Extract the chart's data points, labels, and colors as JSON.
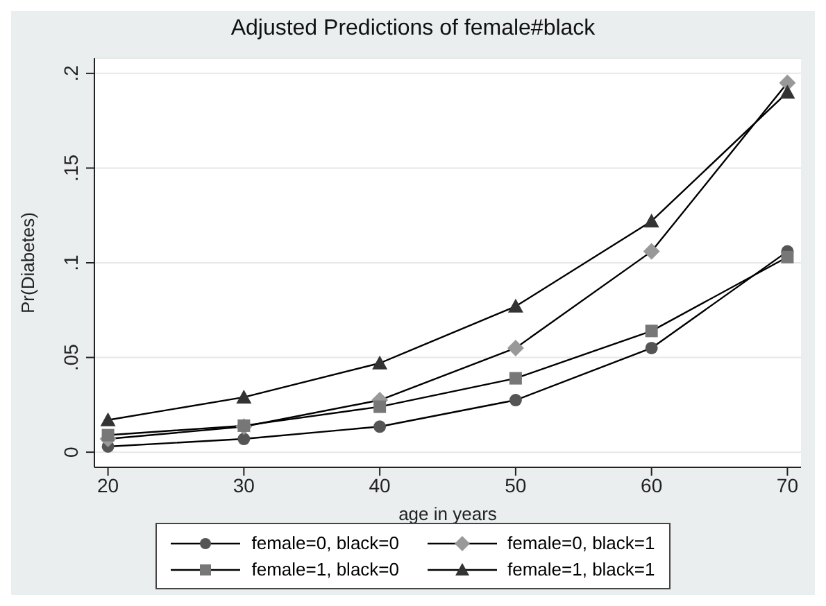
{
  "chart_data": {
    "type": "line",
    "title": "Adjusted Predictions of female#black",
    "xlabel": "age in years",
    "ylabel": "Pr(Diabetes)",
    "x": [
      20,
      30,
      40,
      50,
      60,
      70
    ],
    "series": [
      {
        "name": "female=0, black=0",
        "color": "#555555",
        "marker": "circle",
        "values": [
          0.003,
          0.007,
          0.0135,
          0.0275,
          0.055,
          0.106
        ]
      },
      {
        "name": "female=0, black=1",
        "color": "#999999",
        "marker": "diamond",
        "values": [
          0.007,
          0.0135,
          0.0275,
          0.055,
          0.106,
          0.195
        ]
      },
      {
        "name": "female=1, black=0",
        "color": "#777777",
        "marker": "square",
        "values": [
          0.009,
          0.014,
          0.024,
          0.039,
          0.064,
          0.103
        ]
      },
      {
        "name": "female=1, black=1",
        "color": "#333333",
        "marker": "triangle",
        "values": [
          0.017,
          0.029,
          0.047,
          0.077,
          0.122,
          0.19
        ]
      }
    ],
    "xlim": [
      19,
      71
    ],
    "xticks": [
      20,
      30,
      40,
      50,
      60,
      70
    ],
    "ylim": [
      -0.008,
      0.208
    ],
    "yticks": [
      {
        "value": 0,
        "label": "0"
      },
      {
        "value": 0.05,
        "label": ".05"
      },
      {
        "value": 0.1,
        "label": ".1"
      },
      {
        "value": 0.15,
        "label": ".15"
      },
      {
        "value": 0.2,
        "label": ".2"
      }
    ],
    "grid": "y",
    "legend": "bottom",
    "line_style": "solid"
  }
}
